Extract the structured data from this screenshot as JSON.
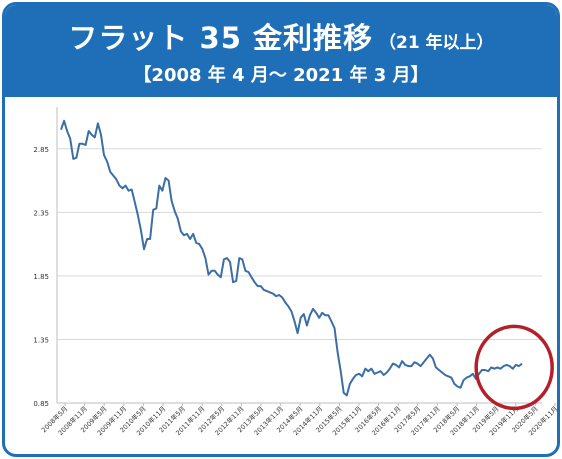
{
  "header": {
    "title": "フラット 35 金利推移",
    "title_note": "（21 年以上）",
    "subtitle": "【2008 年 4 月～ 2021 年 3 月】"
  },
  "colors": {
    "banner": "#1f6fb8",
    "line": "#3c6ea6",
    "highlight_circle": "#b3202a",
    "grid": "#d9d9d9"
  },
  "chart_data": {
    "type": "line",
    "title": "",
    "xlabel": "",
    "ylabel": "",
    "ylim": [
      0.85,
      3.1
    ],
    "yticks": [
      "0.85",
      "1.35",
      "1.85",
      "2.35",
      "2.85"
    ],
    "grid": "horizontal",
    "x_tick_labels": [
      "2008年5月",
      "2008年11月",
      "2009年5月",
      "2009年11月",
      "2010年5月",
      "2010年11月",
      "2011年5月",
      "2011年11月",
      "2012年5月",
      "2012年11月",
      "2013年5月",
      "2013年11月",
      "2014年5月",
      "2014年11月",
      "2015年5月",
      "2015年11月",
      "2016年5月",
      "2016年11月",
      "2017年5月",
      "2017年11月",
      "2018年5月",
      "2018年11月",
      "2019年5月",
      "2019年11月",
      "2020年5月",
      "2020年11月"
    ],
    "x_start": "2008年4月",
    "x_end": "2021年3月",
    "values": [
      3.0,
      3.07,
      2.99,
      2.93,
      2.77,
      2.78,
      2.89,
      2.89,
      2.88,
      2.99,
      2.96,
      2.94,
      3.05,
      2.96,
      2.8,
      2.75,
      2.67,
      2.64,
      2.61,
      2.56,
      2.54,
      2.56,
      2.52,
      2.53,
      2.43,
      2.33,
      2.21,
      2.06,
      2.14,
      2.14,
      2.37,
      2.38,
      2.56,
      2.52,
      2.62,
      2.6,
      2.44,
      2.36,
      2.3,
      2.2,
      2.17,
      2.18,
      2.14,
      2.18,
      2.11,
      2.1,
      2.06,
      1.99,
      1.86,
      1.89,
      1.89,
      1.86,
      1.84,
      1.98,
      1.99,
      1.96,
      1.8,
      1.81,
      1.99,
      1.98,
      1.89,
      1.88,
      1.84,
      1.8,
      1.77,
      1.77,
      1.74,
      1.73,
      1.72,
      1.71,
      1.69,
      1.7,
      1.68,
      1.64,
      1.61,
      1.57,
      1.49,
      1.4,
      1.52,
      1.55,
      1.46,
      1.54,
      1.59,
      1.56,
      1.52,
      1.56,
      1.54,
      1.54,
      1.49,
      1.44,
      1.25,
      1.1,
      0.93,
      0.91,
      1.0,
      1.04,
      1.07,
      1.08,
      1.06,
      1.12,
      1.1,
      1.12,
      1.08,
      1.09,
      1.1,
      1.07,
      1.09,
      1.12,
      1.16,
      1.15,
      1.13,
      1.18,
      1.15,
      1.14,
      1.14,
      1.17,
      1.16,
      1.14,
      1.17,
      1.2,
      1.23,
      1.2,
      1.13,
      1.11,
      1.09,
      1.07,
      1.06,
      1.05,
      1.0,
      0.98,
      0.97,
      1.03,
      1.05,
      1.06,
      1.08,
      1.04,
      1.08,
      1.11,
      1.11,
      1.1,
      1.13,
      1.12,
      1.13,
      1.12,
      1.14,
      1.15,
      1.14,
      1.12,
      1.15,
      1.14,
      1.16
    ]
  },
  "annotation": {
    "highlight": "circle around 2020–2021 recent rates"
  }
}
